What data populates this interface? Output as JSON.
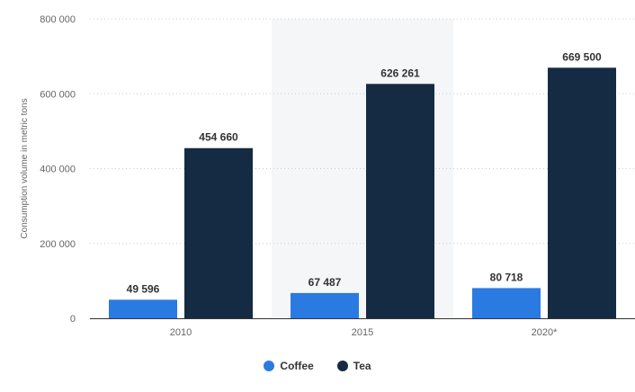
{
  "chart_data": {
    "type": "bar",
    "title": "",
    "xlabel": "",
    "ylabel": "Consumption volume in metric tons",
    "categories": [
      "2010",
      "2015",
      "2020*"
    ],
    "series": [
      {
        "name": "Coffee",
        "color": "#2a7ae2",
        "values": [
          49596,
          67487,
          80718
        ],
        "labels": [
          "49 596",
          "67 487",
          "80 718"
        ]
      },
      {
        "name": "Tea",
        "color": "#152b44",
        "values": [
          454660,
          626261,
          669500
        ],
        "labels": [
          "454 660",
          "626 261",
          "669 500"
        ]
      }
    ],
    "ylim": [
      0,
      800000
    ],
    "yticks": [
      0,
      200000,
      400000,
      600000,
      800000
    ],
    "ytick_labels": [
      "0",
      "200 000",
      "400 000",
      "600 000",
      "800 000"
    ],
    "highlight_category": "2015",
    "highlight_color": "#f5f6f8",
    "grid": true,
    "legend_position": "bottom-center"
  },
  "legend": {
    "items": [
      {
        "label": "Coffee",
        "color": "#2a7ae2"
      },
      {
        "label": "Tea",
        "color": "#152b44"
      }
    ]
  }
}
